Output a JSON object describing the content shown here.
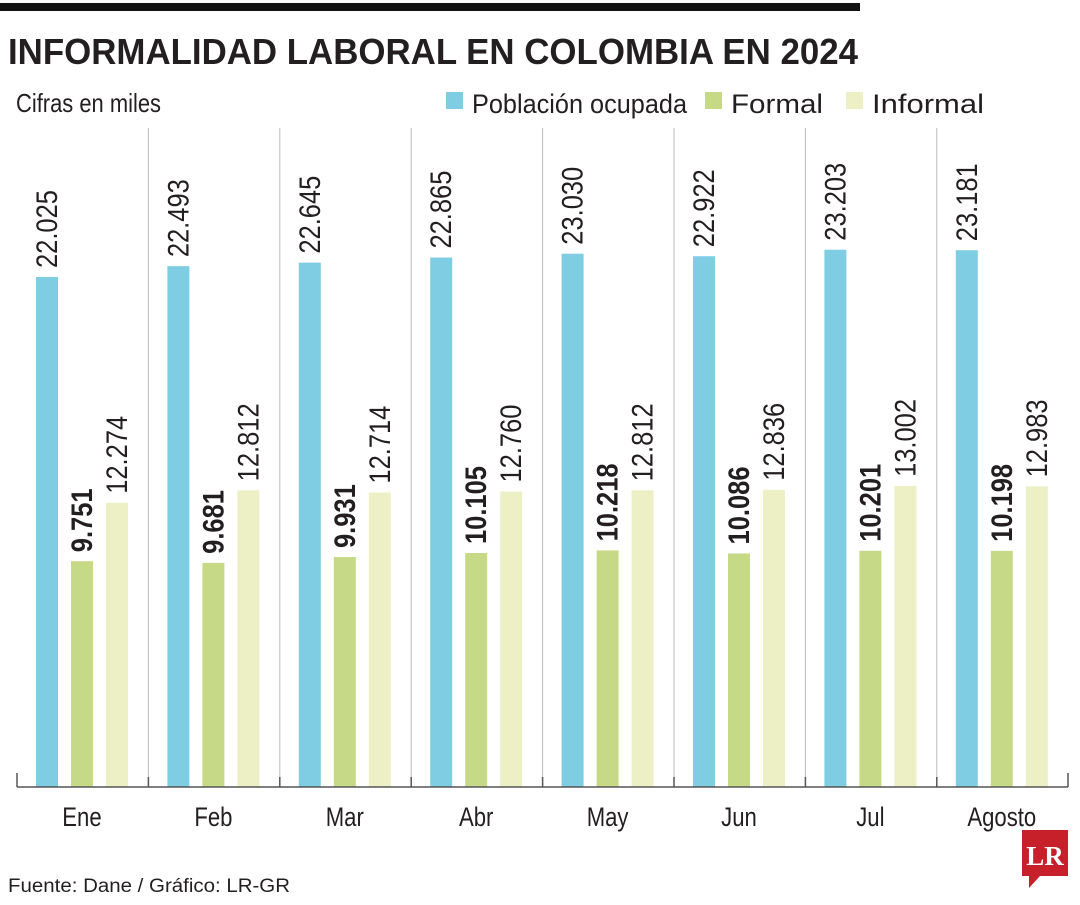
{
  "chart_data": {
    "type": "bar",
    "title": "INFORMALIDAD LABORAL EN COLOMBIA EN 2024",
    "subtitle": "Cifras en miles",
    "categories": [
      "Ene",
      "Feb",
      "Mar",
      "Abr",
      "May",
      "Jun",
      "Jul",
      "Agosto"
    ],
    "series": [
      {
        "name": "Población ocupada",
        "color": "#7ecde3",
        "values": [
          22025,
          22493,
          22645,
          22865,
          23030,
          22922,
          23203,
          23181
        ],
        "labels": [
          "22.025",
          "22.493",
          "22.645",
          "22.865",
          "23.030",
          "22.922",
          "23.203",
          "23.181"
        ]
      },
      {
        "name": "Formal",
        "color": "#c5d987",
        "values": [
          9751,
          9681,
          9931,
          10105,
          10218,
          10086,
          10201,
          10198
        ],
        "labels": [
          "9.751",
          "9.681",
          "9.931",
          "10.105",
          "10.218",
          "10.086",
          "10.201",
          "10.198"
        ]
      },
      {
        "name": "Informal",
        "color": "#ecf0c4",
        "values": [
          12274,
          12812,
          12714,
          12760,
          12812,
          12836,
          13002,
          12983
        ],
        "labels": [
          "12.274",
          "12.812",
          "12.714",
          "12.760",
          "12.812",
          "12.836",
          "13.002",
          "12.983"
        ]
      }
    ],
    "ylim": [
      0,
      27000
    ],
    "grid": false,
    "legend": "top-right"
  },
  "footer": {
    "source": "Fuente: Dane / Gráfico: LR-GR",
    "logo": "LR",
    "logo_color": "#c8202a"
  }
}
